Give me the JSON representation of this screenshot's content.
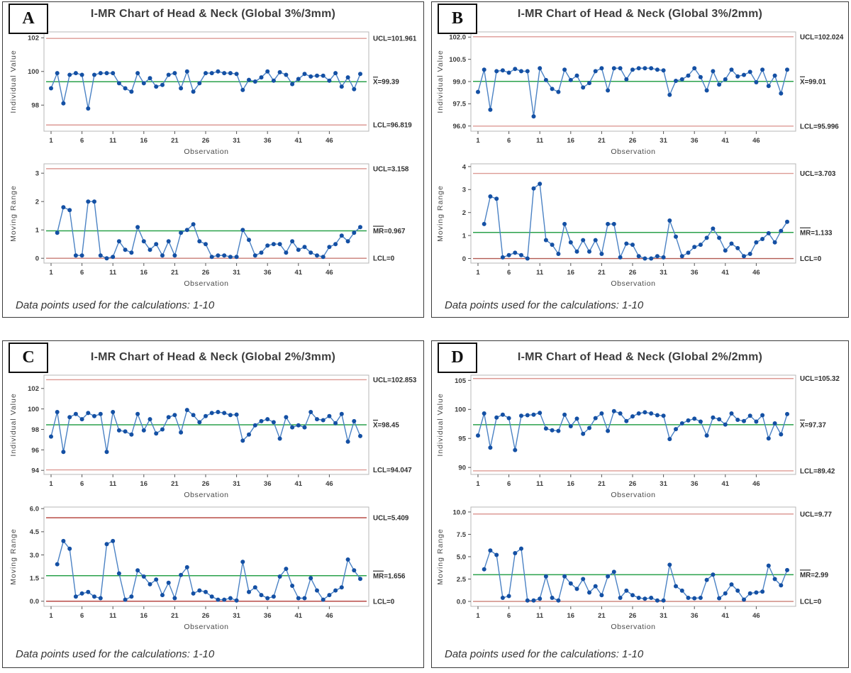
{
  "figure": {
    "footer_note": "Data points used for the calculations: 1-10",
    "xlabel": "Observation",
    "accent_colors": {
      "data_line": "#4b82c4",
      "marker": "#1450a4",
      "center_line": "#2aa14b",
      "limit_salmon": "#dd9a94",
      "limit_dark_red": "#b23a34"
    }
  },
  "chart_data": [
    {
      "panel": "A",
      "title": "I-MR Chart of Head & Neck (Global 3%/3mm)",
      "footer_note": "Data points used for the calculations: 1-10",
      "charts": [
        {
          "name": "individuals",
          "type": "line",
          "ylabel": "Individual Value",
          "xlabel": "Observation",
          "x_start": 1,
          "xticks": [
            1,
            6,
            11,
            16,
            21,
            26,
            31,
            36,
            41,
            46
          ],
          "ytick_values": [
            98,
            100,
            102
          ],
          "ytick_labels": [
            "98",
            "100",
            "102"
          ],
          "ylim": [
            96.45,
            102.35
          ],
          "ucl": 101.961,
          "center": 99.39,
          "lcl": 96.819,
          "ucl_label": "UCL=101.961",
          "center_label": "X=99.39",
          "center_bar_over": "X",
          "lcl_label": "LCL=96.819",
          "colors": {
            "limit": "#dd9a94",
            "lcl": "#dd9a94",
            "center": "#2aa14b",
            "line": "#4b82c4",
            "marker": "#1450a4"
          },
          "values": [
            99.0,
            99.9,
            98.1,
            99.8,
            99.9,
            99.8,
            97.8,
            99.8,
            99.9,
            99.9,
            99.9,
            99.3,
            99.0,
            98.8,
            99.9,
            99.3,
            99.6,
            99.1,
            99.2,
            99.8,
            99.9,
            99.0,
            100.0,
            98.8,
            99.3,
            99.9,
            99.9,
            100.0,
            99.9,
            99.9,
            99.85,
            98.9,
            99.5,
            99.4,
            99.65,
            100.0,
            99.45,
            99.95,
            99.8,
            99.25,
            99.55,
            99.85,
            99.7,
            99.75,
            99.75,
            99.45,
            99.9,
            99.1,
            99.65,
            98.95,
            99.85
          ]
        },
        {
          "name": "moving_range",
          "type": "line",
          "ylabel": "Moving Range",
          "xlabel": "Observation",
          "x_start": 2,
          "xticks": [
            1,
            6,
            11,
            16,
            21,
            26,
            31,
            36,
            41,
            46
          ],
          "ytick_values": [
            0,
            1,
            2,
            3
          ],
          "ytick_labels": [
            "0",
            "1",
            "2",
            "3"
          ],
          "ylim": [
            -0.17,
            3.33
          ],
          "ucl": 3.158,
          "center": 0.967,
          "lcl": 0,
          "ucl_label": "UCL=3.158",
          "center_label": "MR=0.967",
          "center_bar_over": "MR",
          "lcl_label": "LCL=0",
          "colors": {
            "limit": "#dd9a94",
            "lcl": "#c87d76",
            "center": "#2aa14b",
            "line": "#4b82c4",
            "marker": "#1450a4"
          },
          "values": [
            0.9,
            1.8,
            1.7,
            0.1,
            0.1,
            2.0,
            2.0,
            0.1,
            0.0,
            0.05,
            0.6,
            0.3,
            0.2,
            1.1,
            0.6,
            0.3,
            0.5,
            0.1,
            0.6,
            0.1,
            0.9,
            1.0,
            1.2,
            0.6,
            0.5,
            0.05,
            0.1,
            0.1,
            0.05,
            0.05,
            1.0,
            0.65,
            0.1,
            0.2,
            0.45,
            0.5,
            0.5,
            0.2,
            0.6,
            0.3,
            0.4,
            0.2,
            0.1,
            0.05,
            0.4,
            0.5,
            0.8,
            0.6,
            0.9,
            1.1
          ]
        }
      ]
    },
    {
      "panel": "B",
      "title": "I-MR Chart of Head & Neck (Global 3%/2mm)",
      "footer_note": "Data points used for the calculations: 1-10",
      "charts": [
        {
          "name": "individuals",
          "type": "line",
          "ylabel": "Individual Value",
          "xlabel": "Observation",
          "x_start": 1,
          "xticks": [
            1,
            6,
            11,
            16,
            21,
            26,
            31,
            36,
            41,
            46
          ],
          "ytick_values": [
            96.0,
            97.5,
            99.0,
            100.5,
            102.0
          ],
          "ytick_labels": [
            "96.0",
            "97.5",
            "99.0",
            "100.5",
            "102.0"
          ],
          "ylim": [
            95.65,
            102.35
          ],
          "ucl": 102.024,
          "center": 99.01,
          "lcl": 95.996,
          "ucl_label": "UCL=102.024",
          "center_label": "X=99.01",
          "center_bar_over": "X",
          "lcl_label": "LCL=95.996",
          "colors": {
            "limit": "#dd9a94",
            "lcl": "#dd9a94",
            "center": "#2aa14b",
            "line": "#4b82c4",
            "marker": "#1450a4"
          },
          "values": [
            98.3,
            99.8,
            97.1,
            99.7,
            99.75,
            99.6,
            99.85,
            99.7,
            99.7,
            96.65,
            99.9,
            99.1,
            98.5,
            98.3,
            99.8,
            99.1,
            99.4,
            98.6,
            98.9,
            99.7,
            99.9,
            98.4,
            99.9,
            99.9,
            99.15,
            99.8,
            99.9,
            99.9,
            99.9,
            99.8,
            99.75,
            98.1,
            99.05,
            99.15,
            99.4,
            99.9,
            99.3,
            98.4,
            99.7,
            98.8,
            99.15,
            99.8,
            99.35,
            99.45,
            99.65,
            98.95,
            99.8,
            98.7,
            99.4,
            98.2,
            99.8
          ]
        },
        {
          "name": "moving_range",
          "type": "line",
          "ylabel": "Moving Range",
          "xlabel": "Observation",
          "x_start": 2,
          "xticks": [
            1,
            6,
            11,
            16,
            21,
            26,
            31,
            36,
            41,
            46
          ],
          "ytick_values": [
            0,
            1,
            2,
            3,
            4
          ],
          "ytick_labels": [
            "0",
            "1",
            "2",
            "3",
            "4"
          ],
          "ylim": [
            -0.2,
            4.12
          ],
          "ucl": 3.703,
          "center": 1.133,
          "lcl": 0,
          "ucl_label": "UCL=3.703",
          "center_label": "MR=1.133",
          "center_bar_over": "MR",
          "lcl_label": "LCL=0",
          "colors": {
            "limit": "#dd9a94",
            "lcl": "#b25a52",
            "center": "#2aa14b",
            "line": "#4b82c4",
            "marker": "#1450a4"
          },
          "values": [
            1.5,
            2.7,
            2.6,
            0.05,
            0.15,
            0.25,
            0.15,
            0.0,
            3.05,
            3.25,
            0.8,
            0.6,
            0.2,
            1.5,
            0.7,
            0.3,
            0.8,
            0.3,
            0.8,
            0.2,
            1.5,
            1.5,
            0.05,
            0.65,
            0.6,
            0.1,
            0.0,
            0.0,
            0.1,
            0.05,
            1.65,
            0.95,
            0.1,
            0.25,
            0.5,
            0.6,
            0.9,
            1.3,
            0.9,
            0.35,
            0.65,
            0.45,
            0.1,
            0.2,
            0.7,
            0.85,
            1.1,
            0.7,
            1.2,
            1.6
          ]
        }
      ]
    },
    {
      "panel": "C",
      "title": "I-MR Chart of Head & Neck (Global 2%/3mm)",
      "footer_note": "Data points used for the calculations: 1-10",
      "charts": [
        {
          "name": "individuals",
          "type": "line",
          "ylabel": "Individual Value",
          "xlabel": "Observation",
          "x_start": 1,
          "xticks": [
            1,
            6,
            11,
            16,
            21,
            26,
            31,
            36,
            41,
            46
          ],
          "ytick_values": [
            94,
            96,
            98,
            100,
            102
          ],
          "ytick_labels": [
            "94",
            "96",
            "98",
            "100",
            "102"
          ],
          "ylim": [
            93.6,
            103.3
          ],
          "ucl": 102.853,
          "center": 98.45,
          "lcl": 94.047,
          "ucl_label": "UCL=102.853",
          "center_label": "X=98.45",
          "center_bar_over": "X",
          "lcl_label": "LCL=94.047",
          "colors": {
            "limit": "#dd9a94",
            "lcl": "#dd9a94",
            "center": "#2aa14b",
            "line": "#4b82c4",
            "marker": "#1450a4"
          },
          "values": [
            97.3,
            99.7,
            95.8,
            99.2,
            99.5,
            99.0,
            99.6,
            99.3,
            99.5,
            95.8,
            99.7,
            97.9,
            97.8,
            97.5,
            99.5,
            97.9,
            99.0,
            97.6,
            98.0,
            99.2,
            99.4,
            97.7,
            99.9,
            99.4,
            98.7,
            99.3,
            99.6,
            99.7,
            99.6,
            99.4,
            99.45,
            96.9,
            97.5,
            98.4,
            98.8,
            99.0,
            98.7,
            97.1,
            99.2,
            98.2,
            98.4,
            98.2,
            99.7,
            99.0,
            98.9,
            99.3,
            98.6,
            99.5,
            96.8,
            98.8,
            97.35
          ]
        },
        {
          "name": "moving_range",
          "type": "line",
          "ylabel": "Moving Range",
          "xlabel": "Observation",
          "x_start": 2,
          "xticks": [
            1,
            6,
            11,
            16,
            21,
            26,
            31,
            36,
            41,
            46
          ],
          "ytick_values": [
            0.0,
            1.5,
            3.0,
            4.5,
            6.0
          ],
          "ytick_labels": [
            "0.0",
            "1.5",
            "3.0",
            "4.5",
            "6.0"
          ],
          "ylim": [
            -0.33,
            6.1
          ],
          "ucl": 5.409,
          "center": 1.656,
          "lcl": 0,
          "ucl_label": "UCL=5.409",
          "center_label": "MR=1.656",
          "center_bar_over": "MR",
          "lcl_label": "LCL=0",
          "colors": {
            "limit": "#b23a34",
            "lcl": "#b23a34",
            "center": "#2aa14b",
            "line": "#4b82c4",
            "marker": "#1450a4"
          },
          "values": [
            2.4,
            3.9,
            3.4,
            0.3,
            0.5,
            0.6,
            0.3,
            0.2,
            3.7,
            3.9,
            1.8,
            0.1,
            0.3,
            2.0,
            1.6,
            1.1,
            1.4,
            0.4,
            1.2,
            0.2,
            1.7,
            2.2,
            0.5,
            0.7,
            0.6,
            0.3,
            0.1,
            0.1,
            0.2,
            0.05,
            2.55,
            0.6,
            0.9,
            0.4,
            0.2,
            0.3,
            1.6,
            2.1,
            1.0,
            0.2,
            0.2,
            1.5,
            0.7,
            0.1,
            0.4,
            0.7,
            0.9,
            2.7,
            2.0,
            1.45
          ]
        }
      ]
    },
    {
      "panel": "D",
      "title": "I-MR Chart of Head & Neck (Global 2%/2mm)",
      "footer_note": "Data points used for the calculations: 1-10",
      "charts": [
        {
          "name": "individuals",
          "type": "line",
          "ylabel": "Individual Value",
          "xlabel": "Observation",
          "x_start": 1,
          "xticks": [
            1,
            6,
            11,
            16,
            21,
            26,
            31,
            36,
            41,
            46
          ],
          "ytick_values": [
            90,
            95,
            100,
            105
          ],
          "ytick_labels": [
            "90",
            "95",
            "100",
            "105"
          ],
          "ylim": [
            88.8,
            105.9
          ],
          "ucl": 105.32,
          "center": 97.37,
          "lcl": 89.42,
          "ucl_label": "UCL=105.32",
          "center_label": "X=97.37",
          "center_bar_over": "X",
          "lcl_label": "LCL=89.42",
          "colors": {
            "limit": "#dd9a94",
            "lcl": "#dd9a94",
            "center": "#2aa14b",
            "line": "#4b82c4",
            "marker": "#1450a4"
          },
          "values": [
            95.5,
            99.3,
            93.4,
            98.6,
            99.1,
            98.5,
            93.0,
            98.9,
            99.0,
            99.1,
            99.4,
            96.7,
            96.4,
            96.3,
            99.1,
            97.1,
            98.4,
            95.8,
            96.8,
            98.5,
            99.3,
            96.3,
            99.7,
            99.3,
            98.0,
            98.8,
            99.3,
            99.5,
            99.3,
            99.0,
            98.9,
            94.9,
            96.6,
            97.6,
            98.1,
            98.4,
            97.9,
            95.5,
            98.6,
            98.3,
            97.4,
            99.3,
            98.2,
            98.0,
            98.9,
            97.9,
            99.0,
            95.0,
            97.6,
            95.7,
            99.2
          ]
        },
        {
          "name": "moving_range",
          "type": "line",
          "ylabel": "Moving Range",
          "xlabel": "Observation",
          "x_start": 2,
          "xticks": [
            1,
            6,
            11,
            16,
            21,
            26,
            31,
            36,
            41,
            46
          ],
          "ytick_values": [
            0.0,
            2.5,
            5.0,
            7.5,
            10.0
          ],
          "ytick_labels": [
            "0.0",
            "2.5",
            "5.0",
            "7.5",
            "10.0"
          ],
          "ylim": [
            -0.55,
            10.55
          ],
          "ucl": 9.77,
          "center": 2.99,
          "lcl": 0,
          "ucl_label": "UCL=9.77",
          "center_label": "MR=2.99",
          "center_bar_over": "MR",
          "lcl_label": "LCL=0",
          "colors": {
            "limit": "#d9928c",
            "lcl": "#cc8077",
            "center": "#2aa14b",
            "line": "#4b82c4",
            "marker": "#1450a4"
          },
          "values": [
            3.6,
            5.7,
            5.2,
            0.4,
            0.6,
            5.4,
            5.9,
            0.1,
            0.1,
            0.3,
            2.8,
            0.4,
            0.1,
            2.8,
            2.0,
            1.4,
            2.5,
            1.0,
            1.7,
            0.7,
            2.8,
            3.3,
            0.4,
            1.2,
            0.7,
            0.4,
            0.3,
            0.4,
            0.1,
            0.1,
            4.1,
            1.7,
            1.2,
            0.4,
            0.35,
            0.4,
            2.4,
            3.0,
            0.35,
            0.9,
            1.9,
            1.2,
            0.2,
            0.9,
            1.0,
            1.1,
            4.0,
            2.5,
            1.8,
            3.5
          ]
        }
      ]
    }
  ]
}
